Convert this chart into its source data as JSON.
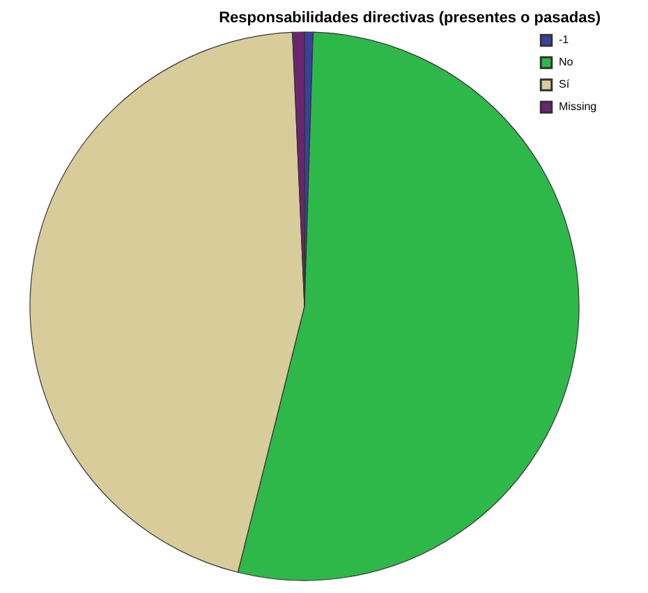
{
  "chart_data": {
    "type": "pie",
    "title": "Responsabilidades directivas (presentes o pasadas)",
    "categories": [
      "-1",
      "No",
      "Sí",
      "Missing"
    ],
    "values": [
      0.5,
      53.4,
      45.4,
      0.7
    ],
    "colors": [
      "#3a3fa0",
      "#2fb84a",
      "#d8cd9a",
      "#6b2570"
    ],
    "legend": "top right"
  }
}
